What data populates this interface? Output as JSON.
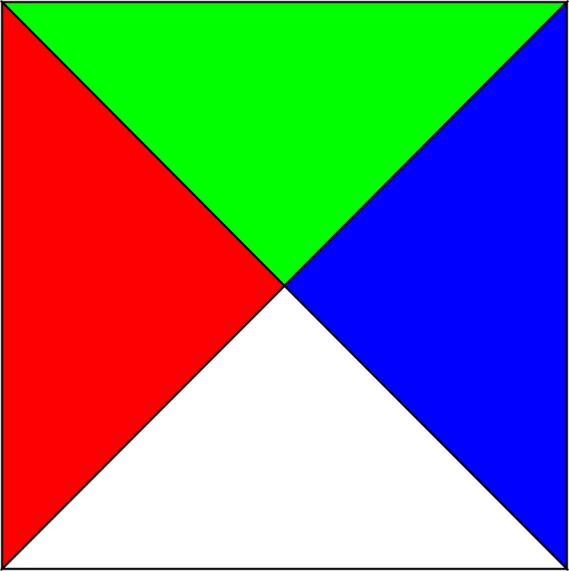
{
  "diagram": {
    "outline_color": "#000000",
    "regions": [
      {
        "name": "top-triangle",
        "side": "top",
        "color": "#00ff00"
      },
      {
        "name": "right-triangle",
        "side": "right",
        "color": "#0000ff"
      },
      {
        "name": "bottom-triangle",
        "side": "bottom",
        "color": "#ffffff"
      },
      {
        "name": "left-triangle",
        "side": "left",
        "color": "#ff0000"
      }
    ]
  }
}
